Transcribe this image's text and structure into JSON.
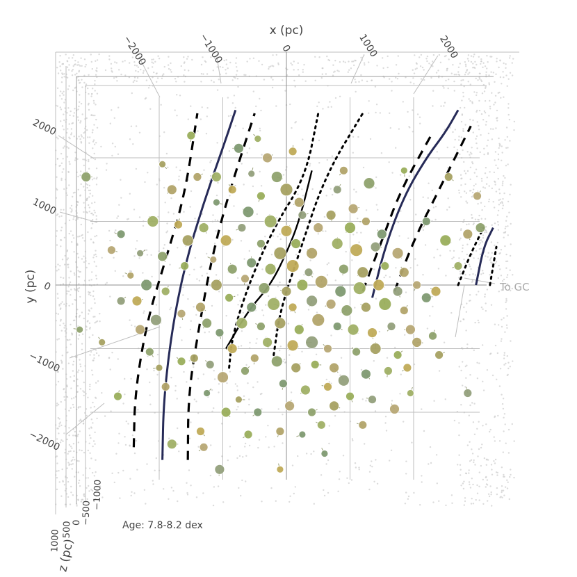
{
  "chart_data": {
    "type": "scatter",
    "projection": "3d",
    "xlabel": "x (pc)",
    "ylabel": "y (pc)",
    "zlabel": "z (pc)",
    "x_ticks": [
      -2000,
      -1000,
      0,
      1000,
      2000
    ],
    "x_tick_labels": [
      "−2000",
      "−1000",
      "0",
      "1000",
      "2000"
    ],
    "y_ticks": [
      2000,
      1000,
      0,
      -1000,
      -2000
    ],
    "y_tick_labels": [
      "2000",
      "1000",
      "0",
      "−1000",
      "−2000"
    ],
    "z_tick_labels": [
      "1000",
      "500",
      "0",
      "−500",
      "−1000"
    ],
    "xlim": [
      -3000,
      3000
    ],
    "ylim": [
      -3000,
      3000
    ],
    "annotation": "Age: 7.8-8.2 dex",
    "direction_label": "To GC",
    "grid": true,
    "background_color": "#cccccc",
    "cluster_colors": [
      "#8fa26e",
      "#a7a162",
      "#9aae5c",
      "#b2a46a",
      "#7f9a72",
      "#a0b066",
      "#c0ab58",
      "#93a07c",
      "#b7a875"
    ],
    "arms": [
      {
        "style": "solid",
        "color": "#262a57",
        "segments": [
          [
            [
              -1950,
              -2750
            ],
            [
              -1930,
              -1800
            ],
            [
              -1800,
              -700
            ],
            [
              -1600,
              300
            ],
            [
              -1300,
              1300
            ],
            [
              -950,
              2300
            ],
            [
              -800,
              2750
            ]
          ],
          [
            [
              1350,
              -200
            ],
            [
              1550,
              600
            ],
            [
              1850,
              1400
            ],
            [
              2200,
              2000
            ],
            [
              2500,
              2400
            ],
            [
              2700,
              2750
            ]
          ],
          [
            [
              2980,
              0
            ],
            [
              3100,
              600
            ],
            [
              3250,
              900
            ]
          ]
        ]
      },
      {
        "style": "dashed",
        "color": "#000000",
        "segments": [
          [
            [
              -2400,
              -2550
            ],
            [
              -2380,
              -1700
            ],
            [
              -2200,
              -600
            ],
            [
              -1900,
              400
            ],
            [
              -1600,
              1400
            ],
            [
              -1400,
              2700
            ]
          ],
          [
            [
              -1550,
              -2750
            ],
            [
              -1540,
              -1700
            ],
            [
              -1380,
              -700
            ],
            [
              -1200,
              300
            ],
            [
              -950,
              1300
            ],
            [
              -500,
              2700
            ]
          ],
          [
            [
              1200,
              -100
            ],
            [
              1500,
              700
            ],
            [
              1800,
              1500
            ],
            [
              2300,
              2400
            ]
          ],
          [
            [
              1700,
              -100
            ],
            [
              2000,
              700
            ],
            [
              2400,
              1500
            ],
            [
              2900,
              2500
            ]
          ]
        ]
      },
      {
        "style": "dotted",
        "color": "#000000",
        "segments": [
          [
            [
              -900,
              -1300
            ],
            [
              -850,
              -800
            ],
            [
              -600,
              0
            ],
            [
              -200,
              900
            ],
            [
              300,
              1700
            ],
            [
              500,
              2700
            ]
          ],
          [
            [
              -200,
              -1100
            ],
            [
              -100,
              -400
            ],
            [
              200,
              500
            ],
            [
              600,
              1700
            ],
            [
              1200,
              2700
            ]
          ],
          [
            [
              2700,
              0
            ],
            [
              2900,
              500
            ],
            [
              3100,
              900
            ]
          ],
          [
            [
              3200,
              0
            ],
            [
              3300,
              600
            ]
          ]
        ]
      },
      {
        "style": "solid-thin",
        "color": "#000000",
        "segments": [
          [
            [
              -950,
              -1000
            ],
            [
              -600,
              -400
            ],
            [
              -250,
              0
            ],
            [
              0,
              500
            ],
            [
              200,
              1000
            ],
            [
              400,
              1800
            ]
          ]
        ]
      }
    ],
    "clusters": [
      {
        "x": -3150,
        "y": 1700,
        "r": 7
      },
      {
        "x": -1950,
        "y": 1900,
        "r": 5
      },
      {
        "x": -1500,
        "y": 2350,
        "r": 6
      },
      {
        "x": -1800,
        "y": 1500,
        "r": 7
      },
      {
        "x": -2600,
        "y": 800,
        "r": 6
      },
      {
        "x": -2100,
        "y": 1000,
        "r": 8
      },
      {
        "x": -1700,
        "y": 950,
        "r": 6
      },
      {
        "x": -2300,
        "y": 500,
        "r": 5
      },
      {
        "x": -2750,
        "y": 550,
        "r": 6
      },
      {
        "x": -1950,
        "y": 450,
        "r": 7
      },
      {
        "x": -1550,
        "y": 700,
        "r": 8
      },
      {
        "x": -1600,
        "y": 300,
        "r": 6
      },
      {
        "x": -2450,
        "y": 150,
        "r": 5
      },
      {
        "x": -2200,
        "y": 0,
        "r": 8
      },
      {
        "x": -1900,
        "y": -100,
        "r": 6
      },
      {
        "x": -2350,
        "y": -250,
        "r": 7
      },
      {
        "x": -2050,
        "y": -550,
        "r": 8
      },
      {
        "x": -1650,
        "y": -450,
        "r": 6
      },
      {
        "x": -1250,
        "y": -600,
        "r": 7
      },
      {
        "x": -2000,
        "y": -1300,
        "r": 5
      },
      {
        "x": -1650,
        "y": -1200,
        "r": 6
      },
      {
        "x": -1900,
        "y": -1600,
        "r": 6
      },
      {
        "x": -1250,
        "y": -1700,
        "r": 5
      },
      {
        "x": -1800,
        "y": -2500,
        "r": 7
      },
      {
        "x": -1350,
        "y": -2300,
        "r": 6
      },
      {
        "x": -1050,
        "y": -2900,
        "r": 7
      },
      {
        "x": -1300,
        "y": -2550,
        "r": 6
      },
      {
        "x": -3250,
        "y": -700,
        "r": 5
      },
      {
        "x": -2900,
        "y": -900,
        "r": 5
      },
      {
        "x": -2650,
        "y": -1750,
        "r": 6
      },
      {
        "x": -1400,
        "y": 1700,
        "r": 6
      },
      {
        "x": -1100,
        "y": 1300,
        "r": 5
      },
      {
        "x": -1300,
        "y": 900,
        "r": 7
      },
      {
        "x": -950,
        "y": 700,
        "r": 8
      },
      {
        "x": -700,
        "y": 900,
        "r": 6
      },
      {
        "x": -1150,
        "y": 400,
        "r": 5
      },
      {
        "x": -850,
        "y": 250,
        "r": 7
      },
      {
        "x": -1100,
        "y": 0,
        "r": 8
      },
      {
        "x": -900,
        "y": -200,
        "r": 6
      },
      {
        "x": -1350,
        "y": -350,
        "r": 7
      },
      {
        "x": -1050,
        "y": -750,
        "r": 6
      },
      {
        "x": -700,
        "y": -600,
        "r": 8
      },
      {
        "x": -850,
        "y": -1000,
        "r": 7
      },
      {
        "x": -1200,
        "y": -1250,
        "r": 6
      },
      {
        "x": -1000,
        "y": -1450,
        "r": 8
      },
      {
        "x": -650,
        "y": -1350,
        "r": 6
      },
      {
        "x": -750,
        "y": -1800,
        "r": 5
      },
      {
        "x": -950,
        "y": -2000,
        "r": 7
      },
      {
        "x": -500,
        "y": -1150,
        "r": 6
      },
      {
        "x": -450,
        "y": -2000,
        "r": 6
      },
      {
        "x": -1100,
        "y": 1700,
        "r": 7
      },
      {
        "x": -850,
        "y": 1500,
        "r": 6
      },
      {
        "x": -550,
        "y": 1750,
        "r": 5
      },
      {
        "x": -300,
        "y": 2000,
        "r": 7
      },
      {
        "x": -150,
        "y": 1700,
        "r": 8
      },
      {
        "x": 0,
        "y": 1500,
        "r": 9
      },
      {
        "x": -400,
        "y": 1400,
        "r": 6
      },
      {
        "x": 200,
        "y": 1300,
        "r": 7
      },
      {
        "x": -600,
        "y": 1150,
        "r": 8
      },
      {
        "x": -250,
        "y": 1000,
        "r": 9
      },
      {
        "x": 0,
        "y": 850,
        "r": 8
      },
      {
        "x": 250,
        "y": 1100,
        "r": 6
      },
      {
        "x": 500,
        "y": 900,
        "r": 7
      },
      {
        "x": -400,
        "y": 650,
        "r": 6
      },
      {
        "x": -100,
        "y": 500,
        "r": 9
      },
      {
        "x": 150,
        "y": 650,
        "r": 7
      },
      {
        "x": 400,
        "y": 500,
        "r": 8
      },
      {
        "x": -550,
        "y": 350,
        "r": 7
      },
      {
        "x": -250,
        "y": 250,
        "r": 8
      },
      {
        "x": 100,
        "y": 300,
        "r": 9
      },
      {
        "x": 350,
        "y": 200,
        "r": 6
      },
      {
        "x": -650,
        "y": 100,
        "r": 6
      },
      {
        "x": -350,
        "y": -50,
        "r": 8
      },
      {
        "x": 0,
        "y": -100,
        "r": 7
      },
      {
        "x": 250,
        "y": 0,
        "r": 8
      },
      {
        "x": 550,
        "y": 50,
        "r": 9
      },
      {
        "x": -550,
        "y": -350,
        "r": 7
      },
      {
        "x": -200,
        "y": -300,
        "r": 9
      },
      {
        "x": 100,
        "y": -350,
        "r": 6
      },
      {
        "x": 400,
        "y": -250,
        "r": 8
      },
      {
        "x": 700,
        "y": -300,
        "r": 7
      },
      {
        "x": -400,
        "y": -650,
        "r": 6
      },
      {
        "x": -100,
        "y": -600,
        "r": 8
      },
      {
        "x": 200,
        "y": -700,
        "r": 7
      },
      {
        "x": 500,
        "y": -550,
        "r": 9
      },
      {
        "x": 800,
        "y": -650,
        "r": 6
      },
      {
        "x": -300,
        "y": -900,
        "r": 7
      },
      {
        "x": 100,
        "y": -950,
        "r": 8
      },
      {
        "x": 400,
        "y": -900,
        "r": 9
      },
      {
        "x": 650,
        "y": -1000,
        "r": 6
      },
      {
        "x": -150,
        "y": -1200,
        "r": 8
      },
      {
        "x": 150,
        "y": -1300,
        "r": 7
      },
      {
        "x": 450,
        "y": -1250,
        "r": 6
      },
      {
        "x": 750,
        "y": -1300,
        "r": 7
      },
      {
        "x": -50,
        "y": -1550,
        "r": 6
      },
      {
        "x": 300,
        "y": -1650,
        "r": 7
      },
      {
        "x": 650,
        "y": -1600,
        "r": 6
      },
      {
        "x": 900,
        "y": -1500,
        "r": 8
      },
      {
        "x": 50,
        "y": -1900,
        "r": 7
      },
      {
        "x": 400,
        "y": -2000,
        "r": 6
      },
      {
        "x": 750,
        "y": -1900,
        "r": 7
      },
      {
        "x": 1000,
        "y": -1750,
        "r": 6
      },
      {
        "x": -100,
        "y": -2300,
        "r": 6
      },
      {
        "x": 250,
        "y": -2350,
        "r": 5
      },
      {
        "x": 550,
        "y": -2200,
        "r": 6
      },
      {
        "x": -100,
        "y": -2900,
        "r": 5
      },
      {
        "x": 800,
        "y": 1500,
        "r": 6
      },
      {
        "x": 1050,
        "y": 1200,
        "r": 7
      },
      {
        "x": 1300,
        "y": 1600,
        "r": 8
      },
      {
        "x": 700,
        "y": 1100,
        "r": 7
      },
      {
        "x": 1000,
        "y": 900,
        "r": 8
      },
      {
        "x": 1250,
        "y": 1000,
        "r": 6
      },
      {
        "x": 1500,
        "y": 800,
        "r": 7
      },
      {
        "x": 800,
        "y": 650,
        "r": 8
      },
      {
        "x": 1100,
        "y": 550,
        "r": 9
      },
      {
        "x": 1400,
        "y": 600,
        "r": 7
      },
      {
        "x": 1750,
        "y": 500,
        "r": 8
      },
      {
        "x": 900,
        "y": 250,
        "r": 7
      },
      {
        "x": 1200,
        "y": 200,
        "r": 8
      },
      {
        "x": 1550,
        "y": 300,
        "r": 6
      },
      {
        "x": 1850,
        "y": 200,
        "r": 7
      },
      {
        "x": 850,
        "y": -100,
        "r": 8
      },
      {
        "x": 1150,
        "y": -50,
        "r": 9
      },
      {
        "x": 1450,
        "y": 0,
        "r": 8
      },
      {
        "x": 1750,
        "y": -100,
        "r": 7
      },
      {
        "x": 2050,
        "y": 0,
        "r": 6
      },
      {
        "x": 950,
        "y": -400,
        "r": 8
      },
      {
        "x": 1250,
        "y": -350,
        "r": 7
      },
      {
        "x": 1550,
        "y": -300,
        "r": 9
      },
      {
        "x": 1850,
        "y": -400,
        "r": 6
      },
      {
        "x": 2200,
        "y": -200,
        "r": 7
      },
      {
        "x": 1050,
        "y": -700,
        "r": 8
      },
      {
        "x": 1350,
        "y": -750,
        "r": 7
      },
      {
        "x": 1650,
        "y": -650,
        "r": 6
      },
      {
        "x": 1950,
        "y": -700,
        "r": 7
      },
      {
        "x": 1100,
        "y": -1050,
        "r": 6
      },
      {
        "x": 1400,
        "y": -1000,
        "r": 8
      },
      {
        "x": 1750,
        "y": -1100,
        "r": 6
      },
      {
        "x": 2050,
        "y": -900,
        "r": 7
      },
      {
        "x": 1250,
        "y": -1400,
        "r": 7
      },
      {
        "x": 1600,
        "y": -1350,
        "r": 6
      },
      {
        "x": 1900,
        "y": -1300,
        "r": 6
      },
      {
        "x": 1350,
        "y": -1800,
        "r": 6
      },
      {
        "x": 1700,
        "y": -1950,
        "r": 7
      },
      {
        "x": 2300,
        "y": -800,
        "r": 6
      },
      {
        "x": 2400,
        "y": -1100,
        "r": 6
      },
      {
        "x": 2500,
        "y": 700,
        "r": 8
      },
      {
        "x": 2850,
        "y": 800,
        "r": 7
      },
      {
        "x": 2200,
        "y": 1000,
        "r": 6
      },
      {
        "x": 2700,
        "y": 300,
        "r": 6
      },
      {
        "x": 2350,
        "y": -100,
        "r": 7
      },
      {
        "x": 2850,
        "y": -1700,
        "r": 6
      },
      {
        "x": 3000,
        "y": 1400,
        "r": 6
      },
      {
        "x": 3050,
        "y": 900,
        "r": 7
      },
      {
        "x": 2550,
        "y": 1700,
        "r": 6
      },
      {
        "x": 1850,
        "y": 1800,
        "r": 5
      },
      {
        "x": 900,
        "y": 1800,
        "r": 6
      },
      {
        "x": -750,
        "y": 2150,
        "r": 7
      },
      {
        "x": -450,
        "y": 2300,
        "r": 5
      },
      {
        "x": 100,
        "y": 2100,
        "r": 6
      },
      {
        "x": -2600,
        "y": -250,
        "r": 6
      },
      {
        "x": -2300,
        "y": -700,
        "r": 7
      },
      {
        "x": -2150,
        "y": -1050,
        "r": 6
      },
      {
        "x": -1450,
        "y": -1150,
        "r": 6
      },
      {
        "x": -600,
        "y": -2350,
        "r": 6
      },
      {
        "x": 1200,
        "y": -2200,
        "r": 6
      },
      {
        "x": 600,
        "y": -2650,
        "r": 5
      },
      {
        "x": 1950,
        "y": -1700,
        "r": 5
      }
    ]
  }
}
